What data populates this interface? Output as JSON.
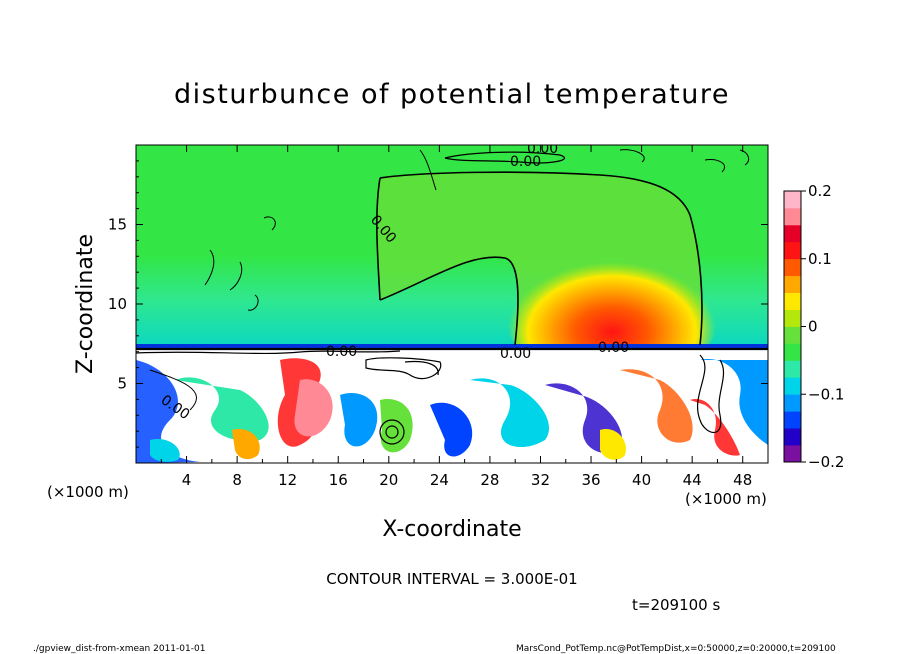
{
  "chart_data": {
    "type": "heatmap",
    "title": "disturbunce of potential temperature",
    "xlabel": "X-coordinate",
    "ylabel": "Z-coordinate",
    "x_unit": "(×1000 m)",
    "y_unit": "(×1000 m)",
    "xlim": [
      0,
      50
    ],
    "ylim": [
      0,
      20
    ],
    "x_ticks": [
      4,
      8,
      12,
      16,
      20,
      24,
      28,
      32,
      36,
      40,
      44,
      48
    ],
    "y_ticks": [
      5,
      10,
      15
    ],
    "colorbar": {
      "range": [
        -0.2,
        0.2
      ],
      "tick_values": [
        0.2,
        0.1,
        0,
        -0.1,
        -0.2
      ],
      "tick_labels": [
        "0.2",
        "0.1",
        "0",
        "−0.1",
        "−0.2"
      ],
      "colors": [
        "#7b0fa0",
        "#2200c8",
        "#0044ff",
        "#0099ff",
        "#00d4e8",
        "#2ee8a8",
        "#33e645",
        "#66e03a",
        "#b4e80c",
        "#ffe800",
        "#ffa800",
        "#ff5a00",
        "#ff1414",
        "#e60028",
        "#ff8a96",
        "#ffb6c8"
      ]
    },
    "contour_labels": [
      "0.00",
      "0.00",
      "0.00",
      "0.00",
      "0.00",
      "0.00",
      "0.00"
    ],
    "contour_interval": "CONTOUR INTERVAL = 3.000E-01",
    "time": "t=209100 s",
    "footer_left": "./gpview_dist-from-xmean   2011-01-01",
    "footer_right": "MarsCond_PotTemp.nc@PotTempDist,x=0:50000,z=0:20000,t=209100"
  }
}
